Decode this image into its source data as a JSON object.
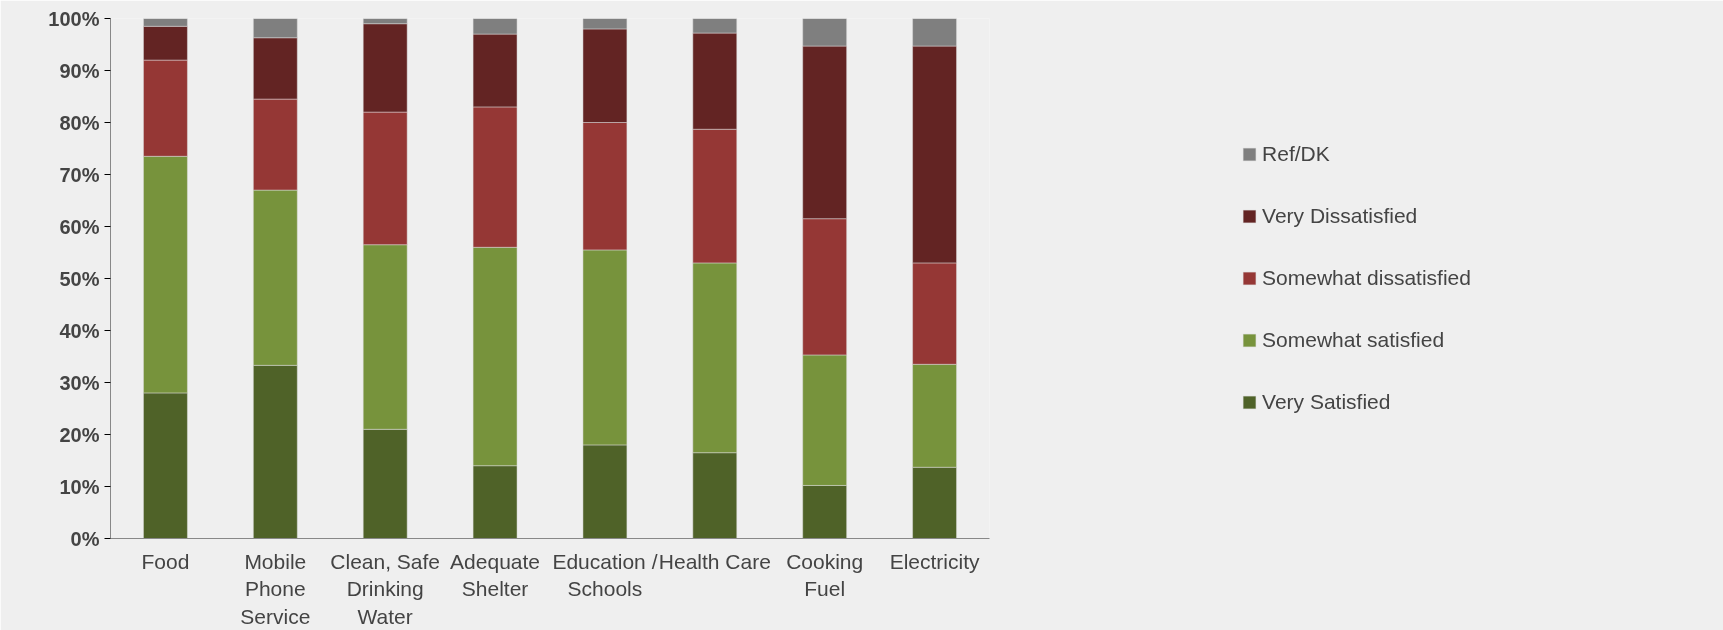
{
  "chart_data": {
    "type": "bar",
    "stacked": true,
    "categories": [
      "Food",
      "Mobile Phone Service",
      "Clean, Safe Drinking Water",
      "Adequate Shelter",
      "Education / Schools",
      "Health Care",
      "Cooking Fuel",
      "Electricity"
    ],
    "series": [
      {
        "name": "Very Satisfied",
        "color": "#4f6228",
        "values": [
          28,
          33.3,
          21,
          14,
          18,
          16.5,
          10.2,
          13.7
        ]
      },
      {
        "name": "Somewhat satisfied",
        "color": "#77933c",
        "values": [
          45.5,
          33.7,
          35.5,
          42,
          37.5,
          36.5,
          25.1,
          19.8
        ]
      },
      {
        "name": "Somewhat dissatisfied",
        "color": "#953735",
        "values": [
          18.5,
          17.5,
          25.5,
          27,
          24.5,
          25.7,
          26.2,
          19.5
        ]
      },
      {
        "name": "Very Dissatisfied",
        "color": "#632423",
        "values": [
          6.5,
          11.8,
          17,
          14,
          18,
          18.5,
          33.2,
          41.7
        ]
      },
      {
        "name": "Ref/DK",
        "color": "#7f7f7f",
        "values": [
          1.5,
          3.7,
          1,
          3,
          2,
          2.8,
          5.3,
          5.3
        ]
      }
    ],
    "ylim": [
      0,
      100
    ],
    "yticks": [
      {
        "value": 0,
        "label": "0%"
      },
      {
        "value": 10,
        "label": "10%"
      },
      {
        "value": 20,
        "label": "20%"
      },
      {
        "value": 30,
        "label": "30%"
      },
      {
        "value": 40,
        "label": "40%"
      },
      {
        "value": 50,
        "label": "50%"
      },
      {
        "value": 60,
        "label": "60%"
      },
      {
        "value": 70,
        "label": "70%"
      },
      {
        "value": 80,
        "label": "80%"
      },
      {
        "value": 90,
        "label": "90%"
      },
      {
        "value": 100,
        "label": "100%"
      }
    ],
    "grid": false,
    "legend": "right"
  }
}
